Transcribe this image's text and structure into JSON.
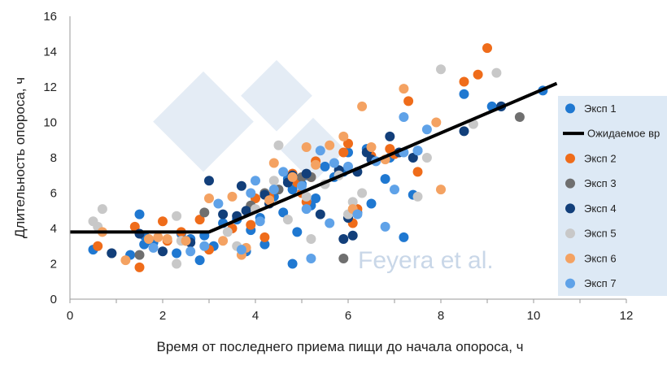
{
  "chart_data": {
    "type": "scatter",
    "title": "",
    "xlabel": "Время от последнего приема пищи до начала опороса, ч",
    "ylabel": "Длительность опороса, ч",
    "xlim": [
      0,
      12
    ],
    "ylim": [
      0,
      16
    ],
    "x_ticks": [
      "0",
      "2",
      "4",
      "6",
      "8",
      "10",
      "12"
    ],
    "y_ticks": [
      "0",
      "2",
      "4",
      "6",
      "8",
      "10",
      "12",
      "14",
      "16"
    ],
    "grid": false,
    "legend_position": "right",
    "watermark": "Feyera et al.",
    "series": [
      {
        "name": "Эксп 1",
        "color": "#1f78d1",
        "points": [
          [
            0.5,
            2.8
          ],
          [
            1.3,
            2.5
          ],
          [
            1.5,
            4.8
          ],
          [
            1.6,
            3.6
          ],
          [
            1.6,
            3.1
          ],
          [
            1.8,
            3.2
          ],
          [
            2.3,
            2.6
          ],
          [
            2.4,
            3.7
          ],
          [
            2.6,
            3.4
          ],
          [
            2.8,
            2.2
          ],
          [
            2.9,
            3.6
          ],
          [
            3.1,
            3.0
          ],
          [
            3.3,
            4.3
          ],
          [
            3.6,
            4.5
          ],
          [
            3.8,
            2.7
          ],
          [
            3.9,
            3.9
          ],
          [
            4.1,
            4.6
          ],
          [
            4.2,
            3.1
          ],
          [
            4.4,
            5.8
          ],
          [
            4.6,
            4.9
          ],
          [
            4.7,
            6.8
          ],
          [
            4.8,
            2.0
          ],
          [
            4.8,
            6.2
          ],
          [
            4.9,
            3.8
          ],
          [
            5.0,
            6.5
          ],
          [
            5.1,
            7.0
          ],
          [
            5.2,
            5.3
          ],
          [
            5.3,
            5.7
          ],
          [
            5.5,
            7.5
          ],
          [
            5.7,
            6.9
          ],
          [
            5.9,
            7.2
          ],
          [
            6.0,
            8.3
          ],
          [
            6.2,
            4.9
          ],
          [
            6.4,
            8.5
          ],
          [
            6.5,
            5.4
          ],
          [
            6.8,
            6.8
          ],
          [
            6.9,
            8.0
          ],
          [
            7.2,
            3.5
          ],
          [
            7.4,
            5.9
          ],
          [
            7.5,
            8.4
          ],
          [
            8.5,
            11.6
          ],
          [
            9.1,
            10.9
          ],
          [
            9.3,
            10.9
          ],
          [
            10.2,
            11.8
          ]
        ]
      },
      {
        "name": "Эксп 2",
        "color": "#ef6c1a",
        "points": [
          [
            0.6,
            3.0
          ],
          [
            1.4,
            4.1
          ],
          [
            1.5,
            1.8
          ],
          [
            2.0,
            4.4
          ],
          [
            2.1,
            3.3
          ],
          [
            2.4,
            3.8
          ],
          [
            2.8,
            4.5
          ],
          [
            3.0,
            2.8
          ],
          [
            3.5,
            4.0
          ],
          [
            3.9,
            4.2
          ],
          [
            4.0,
            5.7
          ],
          [
            4.2,
            3.5
          ],
          [
            4.3,
            5.8
          ],
          [
            4.8,
            7.1
          ],
          [
            4.9,
            6.6
          ],
          [
            5.0,
            6.0
          ],
          [
            5.1,
            5.5
          ],
          [
            5.2,
            6.9
          ],
          [
            5.3,
            7.8
          ],
          [
            5.9,
            8.3
          ],
          [
            6.0,
            8.8
          ],
          [
            6.1,
            4.3
          ],
          [
            6.2,
            5.1
          ],
          [
            6.5,
            8.1
          ],
          [
            6.9,
            8.5
          ],
          [
            7.0,
            8.2
          ],
          [
            7.3,
            11.2
          ],
          [
            7.5,
            7.2
          ],
          [
            8.5,
            12.3
          ],
          [
            8.8,
            12.7
          ],
          [
            9.0,
            14.2
          ]
        ]
      },
      {
        "name": "Эксп 3",
        "color": "#6f6f6f",
        "points": [
          [
            0.9,
            2.6
          ],
          [
            1.5,
            2.5
          ],
          [
            2.5,
            3.3
          ],
          [
            2.9,
            4.9
          ],
          [
            3.9,
            5.3
          ],
          [
            4.2,
            6.0
          ],
          [
            4.5,
            6.2
          ],
          [
            5.0,
            6.9
          ],
          [
            5.2,
            6.9
          ],
          [
            5.9,
            2.3
          ],
          [
            9.7,
            10.3
          ]
        ]
      },
      {
        "name": "Эксп 4",
        "color": "#123f7a",
        "points": [
          [
            0.9,
            2.6
          ],
          [
            1.5,
            3.7
          ],
          [
            2.0,
            2.7
          ],
          [
            2.6,
            3.2
          ],
          [
            3.0,
            6.7
          ],
          [
            3.3,
            4.8
          ],
          [
            3.6,
            4.7
          ],
          [
            3.7,
            6.4
          ],
          [
            3.8,
            5.0
          ],
          [
            4.2,
            5.9
          ],
          [
            4.3,
            5.4
          ],
          [
            4.7,
            6.6
          ],
          [
            4.8,
            7.0
          ],
          [
            5.1,
            7.1
          ],
          [
            5.4,
            4.8
          ],
          [
            5.8,
            7.3
          ],
          [
            5.9,
            3.4
          ],
          [
            6.0,
            4.6
          ],
          [
            6.1,
            3.6
          ],
          [
            6.2,
            7.2
          ],
          [
            6.4,
            8.3
          ],
          [
            6.5,
            7.9
          ],
          [
            6.9,
            9.2
          ],
          [
            7.1,
            8.3
          ],
          [
            7.4,
            8.0
          ],
          [
            8.5,
            9.5
          ],
          [
            9.3,
            10.9
          ]
        ]
      },
      {
        "name": "Эксп 5",
        "color": "#c8c8c8",
        "points": [
          [
            0.5,
            4.4
          ],
          [
            0.6,
            4.1
          ],
          [
            0.7,
            5.1
          ],
          [
            2.3,
            2.0
          ],
          [
            2.3,
            4.7
          ],
          [
            2.4,
            3.3
          ],
          [
            3.4,
            3.8
          ],
          [
            3.6,
            3.0
          ],
          [
            4.0,
            5.1
          ],
          [
            4.4,
            6.7
          ],
          [
            4.5,
            8.7
          ],
          [
            4.7,
            4.5
          ],
          [
            5.1,
            5.8
          ],
          [
            5.2,
            3.4
          ],
          [
            5.5,
            6.5
          ],
          [
            5.8,
            7.0
          ],
          [
            6.0,
            4.8
          ],
          [
            6.1,
            5.5
          ],
          [
            6.3,
            6.0
          ],
          [
            7.5,
            5.8
          ],
          [
            7.7,
            8.0
          ],
          [
            8.0,
            13.0
          ],
          [
            8.7,
            9.9
          ],
          [
            9.2,
            12.8
          ]
        ]
      },
      {
        "name": "Эксп 6",
        "color": "#f4a262",
        "points": [
          [
            0.7,
            3.8
          ],
          [
            1.2,
            2.2
          ],
          [
            1.7,
            3.4
          ],
          [
            1.9,
            3.5
          ],
          [
            2.1,
            3.4
          ],
          [
            2.5,
            3.3
          ],
          [
            3.0,
            5.7
          ],
          [
            3.3,
            3.3
          ],
          [
            3.5,
            5.8
          ],
          [
            3.7,
            2.5
          ],
          [
            3.8,
            2.9
          ],
          [
            4.3,
            5.6
          ],
          [
            4.4,
            7.7
          ],
          [
            4.8,
            6.9
          ],
          [
            5.1,
            8.6
          ],
          [
            5.3,
            7.6
          ],
          [
            5.6,
            8.7
          ],
          [
            5.9,
            9.2
          ],
          [
            6.1,
            5.1
          ],
          [
            6.3,
            10.9
          ],
          [
            6.5,
            8.6
          ],
          [
            6.8,
            7.9
          ],
          [
            7.2,
            11.9
          ],
          [
            7.9,
            10.0
          ],
          [
            8.0,
            6.2
          ]
        ]
      },
      {
        "name": "Эксп 7",
        "color": "#5fa2e8",
        "points": [
          [
            1.8,
            2.9
          ],
          [
            2.6,
            2.7
          ],
          [
            2.9,
            3.0
          ],
          [
            3.2,
            5.4
          ],
          [
            3.7,
            2.8
          ],
          [
            3.9,
            6.0
          ],
          [
            4.0,
            6.7
          ],
          [
            4.1,
            4.4
          ],
          [
            4.4,
            6.2
          ],
          [
            4.6,
            7.2
          ],
          [
            5.0,
            6.4
          ],
          [
            5.1,
            5.1
          ],
          [
            5.2,
            2.3
          ],
          [
            5.4,
            8.4
          ],
          [
            5.6,
            4.3
          ],
          [
            5.7,
            7.7
          ],
          [
            6.0,
            7.5
          ],
          [
            6.2,
            4.8
          ],
          [
            6.6,
            7.8
          ],
          [
            6.8,
            4.1
          ],
          [
            7.0,
            6.2
          ],
          [
            7.2,
            8.3
          ],
          [
            7.2,
            10.3
          ],
          [
            7.5,
            8.4
          ],
          [
            7.7,
            9.6
          ]
        ]
      },
      {
        "name": "Ожидаемое вр",
        "type": "line",
        "color": "#000000",
        "points": [
          [
            0,
            3.8
          ],
          [
            3.0,
            3.8
          ],
          [
            10.5,
            12.2
          ]
        ]
      }
    ],
    "legend_order": [
      "Эксп 1",
      "Ожидаемое вр",
      "Эксп 2",
      "Эксп 3",
      "Эксп 4",
      "Эксп 5",
      "Эксп 6",
      "Эксп 7"
    ],
    "legend_background": "#dde9f5"
  }
}
